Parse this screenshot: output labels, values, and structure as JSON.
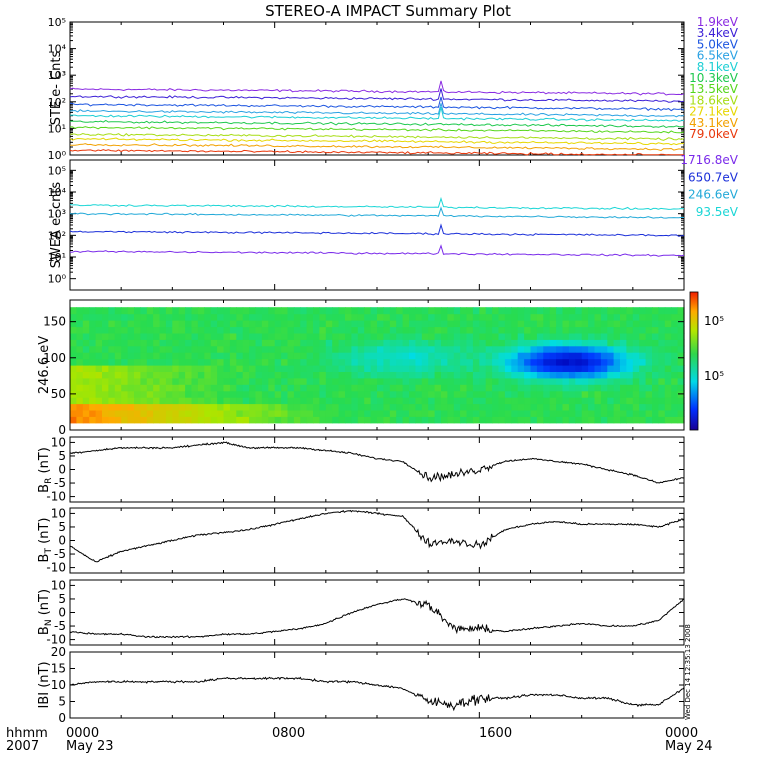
{
  "title": "STEREO-A IMPACT Summary Plot",
  "x_axis": {
    "row_label": "hhmm",
    "year_label": "2007",
    "ticks": [
      {
        "time": "0000",
        "date": "May 23"
      },
      {
        "time": "0800",
        "date": ""
      },
      {
        "time": "1600",
        "date": ""
      },
      {
        "time": "0000",
        "date": "May 24"
      }
    ]
  },
  "vertical_annotation": "Wed Dec 14 12:35:13 2008",
  "colors": {
    "c1_9": "#8a2be2",
    "c3_4": "#3b1fd6",
    "c5_0": "#1c55e0",
    "c6_5": "#2aa1e3",
    "c8_1": "#1dcfd4",
    "c10_3": "#1ec84e",
    "c13_5": "#55d61b",
    "c18_6": "#a7dd15",
    "c27_1": "#e6d700",
    "c43_1": "#f2a100",
    "c79_0": "#e8380c",
    "s1716": "#7a2bea",
    "s650": "#1b2fd9",
    "s246": "#22a9d8",
    "s93": "#1ad6d6",
    "black": "#000000"
  },
  "chart_data": [
    {
      "type": "line",
      "ylabel": "STE e- Cnts",
      "yscale": "log",
      "ylim": [
        1,
        100000
      ],
      "ytick_labels": [
        "10⁰",
        "10¹",
        "10²",
        "10³",
        "10⁴",
        "10⁵"
      ],
      "series": [
        {
          "name": "1.9keV",
          "color": "#8a2be2",
          "approx_level": 300
        },
        {
          "name": "3.4keV",
          "color": "#3b1fd6",
          "approx_level": 160
        },
        {
          "name": "5.0keV",
          "color": "#1c55e0",
          "approx_level": 80
        },
        {
          "name": "6.5keV",
          "color": "#2aa1e3",
          "approx_level": 45
        },
        {
          "name": "8.1keV",
          "color": "#1dcfd4",
          "approx_level": 30
        },
        {
          "name": "10.3keV",
          "color": "#1ec84e",
          "approx_level": 18
        },
        {
          "name": "13.5keV",
          "color": "#55d61b",
          "approx_level": 11
        },
        {
          "name": "18.6keV",
          "color": "#a7dd15",
          "approx_level": 6
        },
        {
          "name": "27.1keV",
          "color": "#e6d700",
          "approx_level": 4
        },
        {
          "name": "43.1keV",
          "color": "#f2a100",
          "approx_level": 2.5
        },
        {
          "name": "79.0keV",
          "color": "#e8380c",
          "approx_level": 1.5
        }
      ]
    },
    {
      "type": "line",
      "ylabel": "SWEA e- cnts",
      "yscale": "log",
      "ylim": [
        0.3,
        300000
      ],
      "ytick_labels": [
        "10⁰",
        "10¹",
        "10²",
        "10³",
        "10⁴",
        "10⁵"
      ],
      "series": [
        {
          "name": "1716.8eV",
          "color": "#7a2bea",
          "approx_level": 18
        },
        {
          "name": "650.7eV",
          "color": "#1b2fd9",
          "approx_level": 150
        },
        {
          "name": "246.6eV",
          "color": "#22a9d8",
          "approx_level": 1000
        },
        {
          "name": "93.5eV",
          "color": "#1ad6d6",
          "approx_level": 2500
        }
      ]
    },
    {
      "type": "heatmap",
      "ylabel": "246.6 eV",
      "ylim": [
        0,
        180
      ],
      "yticks": [
        0,
        50,
        100,
        150
      ],
      "colorbar_tick_labels": [
        "10⁵",
        "10⁵"
      ]
    },
    {
      "type": "line",
      "ylabel": "B_R (nT)",
      "ylim": [
        -12,
        12
      ],
      "yticks": [
        -10,
        -5,
        0,
        5,
        10
      ],
      "series": [
        {
          "x": [
            0,
            1,
            2,
            3,
            4,
            5,
            6,
            7,
            8,
            9,
            10,
            11,
            12,
            13,
            14,
            15,
            16,
            17,
            18,
            19,
            20,
            21,
            22,
            23,
            24
          ],
          "values": [
            6,
            7,
            8,
            8,
            8,
            9,
            10,
            8,
            8,
            8,
            7,
            6,
            4,
            3,
            -3,
            -2,
            0,
            3,
            4,
            3,
            2,
            0,
            -2,
            -5,
            -3
          ]
        }
      ]
    },
    {
      "type": "line",
      "ylabel": "B_T (nT)",
      "ylim": [
        -12,
        12
      ],
      "yticks": [
        -10,
        -5,
        0,
        5,
        10
      ],
      "series": [
        {
          "x": [
            0,
            1,
            2,
            3,
            4,
            5,
            6,
            7,
            8,
            9,
            10,
            11,
            12,
            13,
            14,
            15,
            16,
            17,
            18,
            19,
            20,
            21,
            22,
            23,
            24
          ],
          "values": [
            -2,
            -8,
            -4,
            -2,
            0,
            2,
            3,
            4,
            6,
            8,
            10,
            11,
            10,
            9,
            -1,
            0,
            -2,
            4,
            6,
            7,
            6,
            6,
            6,
            5,
            8
          ]
        }
      ]
    },
    {
      "type": "line",
      "ylabel": "B_N (nT)",
      "ylim": [
        -12,
        12
      ],
      "yticks": [
        -10,
        -5,
        0,
        5,
        10
      ],
      "series": [
        {
          "x": [
            0,
            1,
            2,
            3,
            4,
            5,
            6,
            7,
            8,
            9,
            10,
            11,
            12,
            13,
            14,
            15,
            16,
            17,
            18,
            19,
            20,
            21,
            22,
            23,
            24
          ],
          "values": [
            -7,
            -8,
            -8,
            -9,
            -9,
            -9,
            -8,
            -8,
            -7,
            -6,
            -4,
            0,
            3,
            5,
            3,
            -6,
            -6,
            -7,
            -6,
            -5,
            -4,
            -5,
            -5,
            -3,
            5
          ]
        }
      ]
    },
    {
      "type": "line",
      "ylabel": "IBI (nT)",
      "ylim": [
        0,
        20
      ],
      "yticks": [
        0,
        5,
        10,
        15,
        20
      ],
      "series": [
        {
          "x": [
            0,
            1,
            2,
            3,
            4,
            5,
            6,
            7,
            8,
            9,
            10,
            11,
            12,
            13,
            14,
            15,
            16,
            17,
            18,
            19,
            20,
            21,
            22,
            23,
            24
          ],
          "values": [
            10,
            11,
            11,
            11,
            11,
            11,
            12,
            12,
            12,
            12,
            11,
            11,
            10,
            9,
            5,
            4,
            6,
            6,
            7,
            7,
            6,
            6,
            4,
            4,
            9
          ]
        }
      ]
    }
  ]
}
